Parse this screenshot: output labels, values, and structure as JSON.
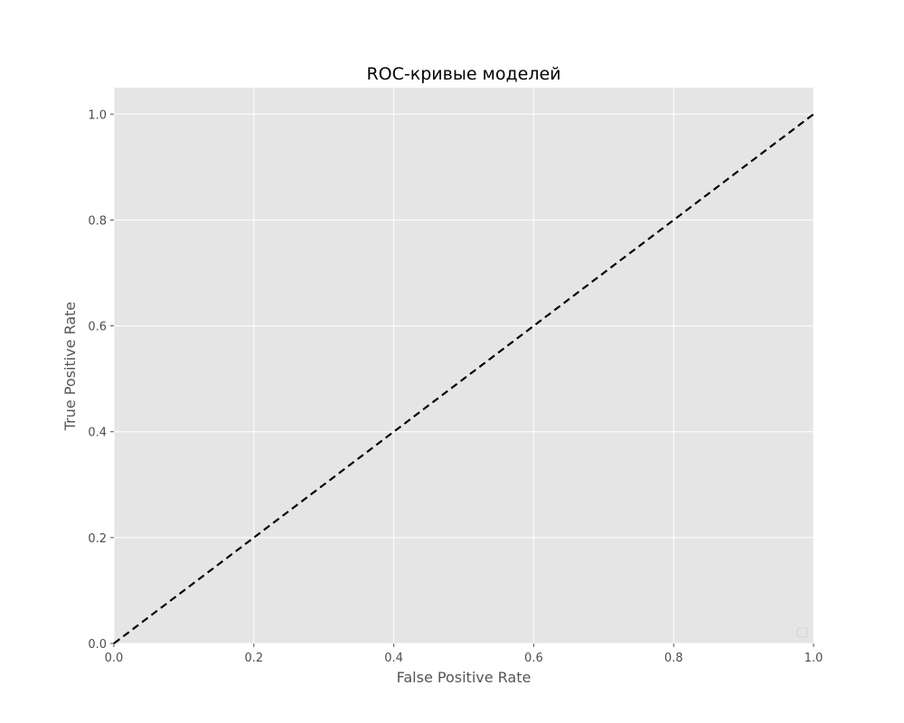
{
  "chart_data": {
    "type": "line",
    "title": "ROC-кривые моделей",
    "xlabel": "False Positive Rate",
    "ylabel": "True Positive Rate",
    "xlim": [
      0.0,
      1.0
    ],
    "ylim": [
      0.0,
      1.05
    ],
    "x_ticks": [
      "0.0",
      "0.2",
      "0.4",
      "0.6",
      "0.8",
      "1.0"
    ],
    "y_ticks": [
      "0.0",
      "0.2",
      "0.4",
      "0.6",
      "0.8",
      "1.0"
    ],
    "grid": true,
    "legend": {
      "placement": "lower right",
      "entries": []
    },
    "series": [
      {
        "style": "dashed",
        "color": "#000000",
        "x": [
          0.0,
          1.0
        ],
        "y": [
          0.0,
          1.0
        ]
      }
    ],
    "colors": {
      "plot_background": "#e5e5e5",
      "grid": "#ffffff",
      "reference_line": "#000000"
    }
  }
}
